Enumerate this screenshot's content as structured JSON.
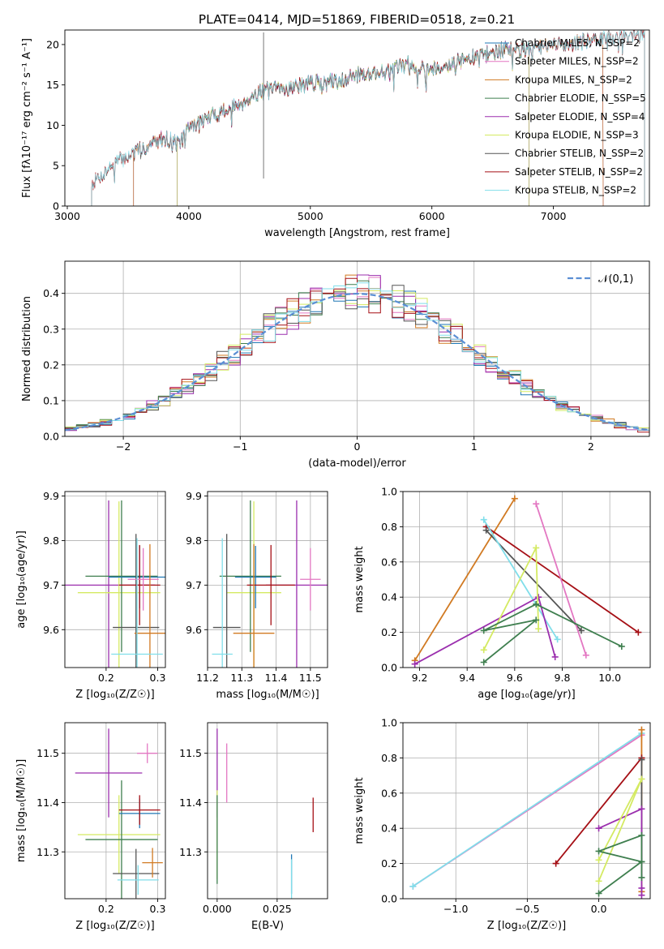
{
  "chart_data": [
    {
      "id": "spectrum",
      "type": "line",
      "title": "PLATE=0414, MJD=51869, FIBERID=0518, z=0.21",
      "xlabel": "wavelength [Angstrom, rest frame]",
      "ylabel": "Flux [fλ10⁻¹⁷ erg cm⁻² s⁻¹ A⁻¹]",
      "xlim": [
        2980,
        7790
      ],
      "ylim": [
        0,
        21.8
      ],
      "xticks": [
        3000,
        4000,
        5000,
        6000,
        7000
      ],
      "yticks": [
        0,
        5,
        10,
        15,
        20
      ],
      "grid": false,
      "legend_position": "right",
      "cutoffs": {
        "MILES": [
          3540,
          7410
        ],
        "ELODIE": [
          3900,
          6800
        ],
        "STELIB": [
          3200,
          7750
        ]
      },
      "anchors": [
        [
          3200,
          2.8
        ],
        [
          3400,
          5.5
        ],
        [
          3600,
          7.0
        ],
        [
          3800,
          8.6
        ],
        [
          3920,
          7.8
        ],
        [
          4000,
          9.8
        ],
        [
          4200,
          11.3
        ],
        [
          4400,
          12.6
        ],
        [
          4600,
          14.3
        ],
        [
          4800,
          14.7
        ],
        [
          5000,
          15.3
        ],
        [
          5200,
          15.5
        ],
        [
          5400,
          16.4
        ],
        [
          5600,
          16.7
        ],
        [
          5800,
          17.6
        ],
        [
          6000,
          17.1
        ],
        [
          6200,
          17.9
        ],
        [
          6400,
          18.7
        ],
        [
          6600,
          19.5
        ],
        [
          6800,
          19.4
        ],
        [
          7000,
          20.0
        ],
        [
          7200,
          20.3
        ],
        [
          7400,
          20.7
        ],
        [
          7600,
          21.1
        ],
        [
          7750,
          21.3
        ]
      ],
      "spike": {
        "x": 4615,
        "y_low": 3.4,
        "y_high": 21.5
      },
      "series": [
        {
          "name": "Chabrier MILES, N_SSP=2",
          "color": "#1f77b4",
          "lib": "MILES"
        },
        {
          "name": "Salpeter MILES, N_SSP=2",
          "color": "#e377c2",
          "lib": "MILES"
        },
        {
          "name": "Kroupa MILES, N_SSP=2",
          "color": "#d17a22",
          "lib": "MILES"
        },
        {
          "name": "Chabrier ELODIE, N_SSP=5",
          "color": "#3f7f4f",
          "lib": "ELODIE"
        },
        {
          "name": "Salpeter ELODIE, N_SSP=4",
          "color": "#9b2fae",
          "lib": "ELODIE"
        },
        {
          "name": "Kroupa ELODIE, N_SSP=3",
          "color": "#d4ea62",
          "lib": "ELODIE"
        },
        {
          "name": "Chabrier STELIB, N_SSP=2",
          "color": "#555555",
          "lib": "STELIB"
        },
        {
          "name": "Salpeter STELIB, N_SSP=2",
          "color": "#a50f15",
          "lib": "STELIB"
        },
        {
          "name": "Kroupa STELIB, N_SSP=2",
          "color": "#80deea",
          "lib": "STELIB"
        }
      ]
    },
    {
      "id": "residuals",
      "type": "histogram",
      "xlabel": "(data-model)/error",
      "ylabel": "Normed distribution",
      "xlim": [
        -2.5,
        2.5
      ],
      "ylim": [
        0,
        0.49
      ],
      "xticks": [
        -2,
        -1,
        0,
        1,
        2
      ],
      "yticks": [
        0.0,
        0.1,
        0.2,
        0.3,
        0.4
      ],
      "grid": true,
      "legend_position": "top-right",
      "gaussian_label": "𝒩(0,1)",
      "gaussian_color": "#5b8fd4",
      "bin_width": 0.1
    },
    {
      "id": "z_age",
      "type": "errorbar",
      "xlabel": "Z [log₁₀(Z/Z☉)]",
      "ylabel": "age  [log₁₀(age/yr)]",
      "xlim": [
        0.12,
        0.315
      ],
      "ylim": [
        9.515,
        9.91
      ],
      "xticks": [
        0.2,
        0.3
      ],
      "yticks": [
        9.6,
        9.7,
        9.8,
        9.9
      ],
      "grid": true,
      "points": [
        {
          "color": "#9b2fae",
          "x": 0.205,
          "xerr": 0.09,
          "y": 9.7,
          "yerr": 0.19
        },
        {
          "color": "#d4ea62",
          "x": 0.225,
          "xerr": 0.08,
          "y": 9.683,
          "yerr": 0.205
        },
        {
          "color": "#3f7f4f",
          "x": 0.23,
          "xerr": 0.07,
          "y": 9.72,
          "yerr": 0.17
        },
        {
          "color": "#1f77b4",
          "x": 0.265,
          "xerr": 0.06,
          "y": 9.718,
          "yerr": 0.07
        },
        {
          "color": "#555555",
          "x": 0.258,
          "xerr": 0.045,
          "y": 9.605,
          "yerr": 0.21
        },
        {
          "color": "#a50f15",
          "x": 0.265,
          "xerr": 0.04,
          "y": 9.7,
          "yerr": 0.09
        },
        {
          "color": "#e377c2",
          "x": 0.272,
          "xerr": 0.03,
          "y": 9.713,
          "yerr": 0.07
        },
        {
          "color": "#d17a22",
          "x": 0.285,
          "xerr": 0.03,
          "y": 9.592,
          "yerr": 0.2
        },
        {
          "color": "#80deea",
          "x": 0.26,
          "xerr": 0.05,
          "y": 9.545,
          "yerr": 0.26
        }
      ]
    },
    {
      "id": "mass_age",
      "type": "errorbar",
      "xlabel": "mass [log₁₀(M/M☉)]",
      "ylabel": "",
      "xlim": [
        11.2,
        11.55
      ],
      "ylim": [
        9.515,
        9.91
      ],
      "xticks": [
        11.2,
        11.3,
        11.4,
        11.5
      ],
      "yticks": [
        9.6,
        9.7,
        9.8,
        9.9
      ],
      "grid": true,
      "points": [
        {
          "color": "#9b2fae",
          "x": 11.46,
          "xerr": 0.09,
          "y": 9.7,
          "yerr": 0.19
        },
        {
          "color": "#d4ea62",
          "x": 11.335,
          "xerr": 0.08,
          "y": 9.683,
          "yerr": 0.205
        },
        {
          "color": "#3f7f4f",
          "x": 11.325,
          "xerr": 0.09,
          "y": 9.72,
          "yerr": 0.17
        },
        {
          "color": "#1f77b4",
          "x": 11.34,
          "xerr": 0.06,
          "y": 9.718,
          "yerr": 0.07
        },
        {
          "color": "#555555",
          "x": 11.256,
          "xerr": 0.04,
          "y": 9.605,
          "yerr": 0.21
        },
        {
          "color": "#a50f15",
          "x": 11.385,
          "xerr": 0.07,
          "y": 9.7,
          "yerr": 0.09
        },
        {
          "color": "#e377c2",
          "x": 11.5,
          "xerr": 0.03,
          "y": 9.713,
          "yerr": 0.07
        },
        {
          "color": "#d17a22",
          "x": 11.335,
          "xerr": 0.06,
          "y": 9.592,
          "yerr": 0.2
        },
        {
          "color": "#80deea",
          "x": 11.243,
          "xerr": 0.03,
          "y": 9.545,
          "yerr": 0.26
        }
      ]
    },
    {
      "id": "age_weight",
      "type": "line",
      "xlabel": "age  [log₁₀(age/yr)]",
      "ylabel": "mass weight",
      "xlim": [
        9.13,
        10.17
      ],
      "ylim": [
        0,
        1.0
      ],
      "xticks": [
        9.2,
        9.4,
        9.6,
        9.8,
        10.0
      ],
      "yticks": [
        0.0,
        0.2,
        0.4,
        0.6,
        0.8,
        1.0
      ],
      "grid": true,
      "series": [
        {
          "color": "#d17a22",
          "points": [
            [
              9.18,
              0.04
            ],
            [
              9.6,
              0.96
            ]
          ]
        },
        {
          "color": "#a50f15",
          "points": [
            [
              9.48,
              0.8
            ],
            [
              10.12,
              0.2
            ]
          ]
        },
        {
          "color": "#555555",
          "points": [
            [
              9.48,
              0.78
            ],
            [
              9.88,
              0.21
            ]
          ]
        },
        {
          "color": "#80deea",
          "points": [
            [
              9.47,
              0.84
            ],
            [
              9.78,
              0.16
            ]
          ]
        },
        {
          "color": "#e377c2",
          "points": [
            [
              9.69,
              0.93
            ],
            [
              9.9,
              0.07
            ]
          ]
        },
        {
          "color": "#9b2fae",
          "points": [
            [
              9.18,
              0.02
            ],
            [
              9.7,
              0.4
            ],
            [
              9.77,
              0.06
            ]
          ]
        },
        {
          "color": "#d4ea62",
          "points": [
            [
              9.47,
              0.1
            ],
            [
              9.69,
              0.68
            ],
            [
              9.7,
              0.22
            ]
          ]
        },
        {
          "color": "#3f7f4f",
          "points": [
            [
              9.47,
              0.03
            ],
            [
              9.69,
              0.27
            ],
            [
              9.47,
              0.21
            ],
            [
              9.69,
              0.36
            ],
            [
              10.05,
              0.12
            ]
          ]
        }
      ]
    },
    {
      "id": "z_mass",
      "type": "errorbar",
      "xlabel": "Z [log₁₀(Z/Z☉)]",
      "ylabel": "mass [log₁₀(M/M☉)]",
      "xlim": [
        0.12,
        0.315
      ],
      "ylim": [
        11.205,
        11.562
      ],
      "xticks": [
        0.2,
        0.3
      ],
      "yticks": [
        11.3,
        11.4,
        11.5
      ],
      "grid": true,
      "points": [
        {
          "color": "#9b2fae",
          "x": 0.205,
          "xerr": 0.065,
          "y": 11.46,
          "yerr": 0.09
        },
        {
          "color": "#d4ea62",
          "x": 0.225,
          "xerr": 0.08,
          "y": 11.335,
          "yerr": 0.08
        },
        {
          "color": "#3f7f4f",
          "x": 0.23,
          "xerr": 0.07,
          "y": 11.325,
          "yerr": 0.12
        },
        {
          "color": "#1f77b4",
          "x": 0.265,
          "xerr": 0.04,
          "y": 11.378,
          "yerr": 0.03
        },
        {
          "color": "#555555",
          "x": 0.258,
          "xerr": 0.045,
          "y": 11.256,
          "yerr": 0.05
        },
        {
          "color": "#a50f15",
          "x": 0.265,
          "xerr": 0.04,
          "y": 11.385,
          "yerr": 0.03
        },
        {
          "color": "#e377c2",
          "x": 0.28,
          "xerr": 0.02,
          "y": 11.5,
          "yerr": 0.02
        },
        {
          "color": "#d17a22",
          "x": 0.29,
          "xerr": 0.02,
          "y": 11.278,
          "yerr": 0.03
        },
        {
          "color": "#80deea",
          "x": 0.262,
          "xerr": 0.04,
          "y": 11.243,
          "yerr": 0.03
        }
      ]
    },
    {
      "id": "ebv_mass",
      "type": "errorbar",
      "xlabel": "E(B-V)",
      "ylabel": "",
      "xlim": [
        -0.004,
        0.046
      ],
      "ylim": [
        11.205,
        11.562
      ],
      "xticks": [
        0.0,
        0.025
      ],
      "xticklabels": [
        "0.000",
        "0.025"
      ],
      "yticks": [
        11.3,
        11.4,
        11.5
      ],
      "grid": true,
      "points": [
        {
          "color": "#9b2fae",
          "x": 0.0,
          "xerr": 0,
          "y": 11.46,
          "yerr": 0.09
        },
        {
          "color": "#d4ea62",
          "x": 0.0,
          "xerr": 0,
          "y": 11.335,
          "yerr": 0.09
        },
        {
          "color": "#3f7f4f",
          "x": 0.0,
          "xerr": 0,
          "y": 11.325,
          "yerr": 0.09
        },
        {
          "color": "#e377c2",
          "x": 0.004,
          "xerr": 0,
          "y": 11.46,
          "yerr": 0.06
        },
        {
          "color": "#1f77b4",
          "x": 0.031,
          "xerr": 0,
          "y": 11.255,
          "yerr": 0.04
        },
        {
          "color": "#80deea",
          "x": 0.031,
          "xerr": 0,
          "y": 11.245,
          "yerr": 0.04
        },
        {
          "color": "#a50f15",
          "x": 0.04,
          "xerr": 0,
          "y": 11.375,
          "yerr": 0.035
        }
      ]
    },
    {
      "id": "z_weight",
      "type": "line",
      "xlabel": "Z [log₁₀(Z/Z☉)]",
      "ylabel": "mass weight",
      "xlim": [
        -1.37,
        0.36
      ],
      "ylim": [
        0,
        1.0
      ],
      "xticks": [
        -1.0,
        -0.5,
        0.0
      ],
      "xticklabels": [
        "−1.0",
        "−0.5",
        "0.0"
      ],
      "yticks": [
        0.0,
        0.2,
        0.4,
        0.6,
        0.8,
        1.0
      ],
      "grid": true,
      "series": [
        {
          "color": "#e377c2",
          "points": [
            [
              -1.3,
              0.07
            ],
            [
              0.3,
              0.93
            ]
          ]
        },
        {
          "color": "#80deea",
          "points": [
            [
              -1.3,
              0.07
            ],
            [
              0.3,
              0.94
            ]
          ]
        },
        {
          "color": "#d17a22",
          "points": [
            [
              0.3,
              0.04
            ],
            [
              0.3,
              0.96
            ]
          ]
        },
        {
          "color": "#a50f15",
          "points": [
            [
              -0.3,
              0.2
            ],
            [
              0.3,
              0.8
            ]
          ]
        },
        {
          "color": "#555555",
          "points": [
            [
              0.3,
              0.21
            ],
            [
              0.3,
              0.79
            ]
          ]
        },
        {
          "color": "#9b2fae",
          "points": [
            [
              0.0,
              0.4
            ],
            [
              0.3,
              0.51
            ],
            [
              0.3,
              0.06
            ],
            [
              0.3,
              0.02
            ]
          ]
        },
        {
          "color": "#d4ea62",
          "points": [
            [
              0.0,
              0.1
            ],
            [
              0.3,
              0.68
            ],
            [
              0.0,
              0.22
            ]
          ]
        },
        {
          "color": "#3f7f4f",
          "points": [
            [
              0.0,
              0.03
            ],
            [
              0.3,
              0.21
            ],
            [
              0.0,
              0.27
            ],
            [
              0.3,
              0.36
            ],
            [
              0.3,
              0.12
            ]
          ]
        }
      ]
    }
  ]
}
